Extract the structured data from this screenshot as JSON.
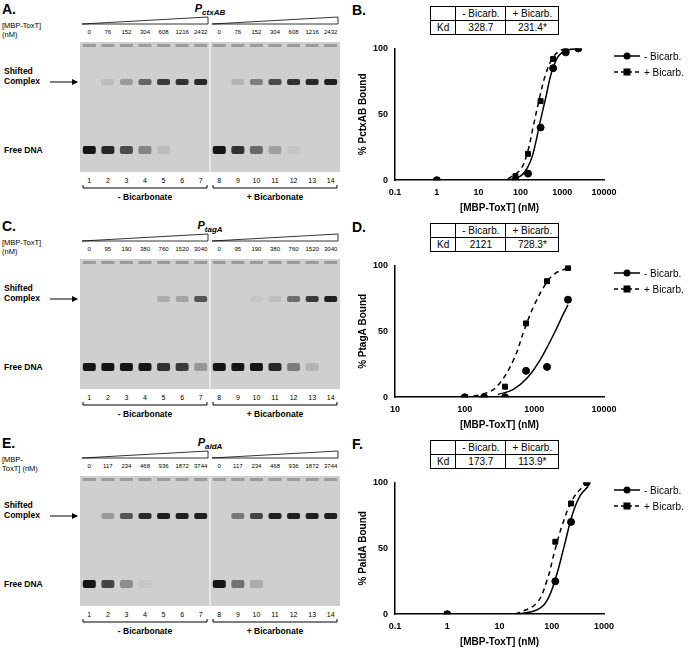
{
  "gels": [
    {
      "panel": "A.",
      "title_main": "P",
      "title_sub": "ctxAB",
      "conc_label": [
        "[MBP-ToxT]",
        "(nM)"
      ],
      "concentrations": [
        0,
        76,
        152,
        304,
        608,
        1216,
        2432
      ],
      "lanes": [
        1,
        2,
        3,
        4,
        5,
        6,
        7,
        8,
        9,
        10,
        11,
        12,
        13,
        14
      ],
      "shifted_label": "Shifted Complex",
      "free_label": "Free DNA",
      "conditions": [
        "- Bicarbonate",
        "+ Bicarbonate"
      ],
      "shifted_intensity": [
        0,
        0.1,
        0.3,
        0.6,
        0.85,
        0.9,
        0.95,
        0,
        0.15,
        0.45,
        0.75,
        0.9,
        0.95,
        1
      ],
      "free_intensity": [
        1,
        0.9,
        0.7,
        0.4,
        0.1,
        0,
        0,
        1,
        0.85,
        0.55,
        0.25,
        0.05,
        0,
        0
      ]
    },
    {
      "panel": "C.",
      "title_main": "P",
      "title_sub": "tagA",
      "conc_label": [
        "[MBP-ToxT]",
        "(nM)"
      ],
      "concentrations": [
        0,
        95,
        190,
        380,
        760,
        1520,
        3040
      ],
      "lanes": [
        1,
        2,
        3,
        4,
        5,
        6,
        7,
        8,
        9,
        10,
        11,
        12,
        13,
        14
      ],
      "shifted_label": "Shifted Complex",
      "free_label": "Free DNA",
      "conditions": [
        "- Bicarbonate",
        "+ Bicarbonate"
      ],
      "shifted_intensity": [
        0,
        0,
        0,
        0,
        0.2,
        0.25,
        0.7,
        0,
        0,
        0.05,
        0.1,
        0.55,
        0.85,
        1
      ],
      "free_intensity": [
        1,
        1,
        1,
        1,
        0.85,
        0.8,
        0.3,
        1,
        1,
        1,
        0.9,
        0.45,
        0.15,
        0
      ]
    },
    {
      "panel": "E.",
      "title_main": "P",
      "title_sub": "aldA",
      "conc_label": [
        "[MBP-",
        "ToxT] (nM)"
      ],
      "concentrations": [
        0,
        117,
        234,
        468,
        936,
        1872,
        3744
      ],
      "lanes": [
        1,
        2,
        3,
        4,
        5,
        6,
        7,
        8,
        9,
        10,
        11,
        12,
        13,
        14
      ],
      "shifted_label": "Shifted Complex",
      "free_label": "Free DNA",
      "conditions": [
        "- Bicarbonate",
        "+ Bicarbonate"
      ],
      "shifted_intensity": [
        0,
        0.3,
        0.7,
        0.95,
        1,
        1,
        1,
        0,
        0.5,
        0.8,
        1,
        1,
        1,
        1
      ],
      "free_intensity": [
        1,
        0.75,
        0.35,
        0.05,
        0,
        0,
        0,
        1,
        0.5,
        0.2,
        0,
        0,
        0,
        0
      ]
    }
  ],
  "chart_data": [
    {
      "type": "scatter",
      "panel": "B.",
      "x_label": "[MBP-ToxT] (nM)",
      "y_label": "% PctxAB Bound",
      "log": "x",
      "grid": false,
      "legend": "upper right",
      "xlim": [
        0.1,
        10000
      ],
      "xticks": [
        0.1,
        1,
        10,
        100,
        1000,
        10000
      ],
      "ylim": [
        0,
        100
      ],
      "yticks": [
        0,
        50,
        100
      ],
      "kd_table": {
        "header": [
          "- Bicarb.",
          "+ Bicarb."
        ],
        "row_label": "Kd",
        "values": [
          328.7,
          231.4
        ],
        "significant": [
          false,
          true
        ],
        "significance_mark": "*"
      },
      "series": [
        {
          "name": "- Bicarb.",
          "color": "#000000",
          "marker": "circle",
          "line_style": "solid",
          "x": [
            1,
            76,
            152,
            304,
            608,
            1216,
            2432
          ],
          "values": [
            0,
            0,
            5,
            40,
            85,
            97,
            100
          ],
          "fit_x": [
            50,
            100,
            150,
            200,
            300,
            400,
            600,
            1000,
            2432
          ],
          "fit_values": [
            0,
            3,
            10,
            20,
            45,
            62,
            85,
            97,
            100
          ]
        },
        {
          "name": "+ Bicarb.",
          "color": "#000000",
          "marker": "square",
          "line_style": "dashed",
          "x": [
            1,
            76,
            152,
            304,
            608,
            1216,
            2432
          ],
          "values": [
            0,
            3,
            20,
            60,
            92,
            98,
            100
          ],
          "fit_x": [
            50,
            100,
            150,
            200,
            300,
            400,
            600,
            1000,
            2432
          ],
          "fit_values": [
            1,
            8,
            22,
            40,
            65,
            80,
            93,
            99,
            100
          ]
        }
      ]
    },
    {
      "type": "scatter",
      "panel": "D.",
      "x_label": "[MBP-ToxT] (nM)",
      "y_label": "% PtagA Bound",
      "log": "x",
      "grid": false,
      "legend": "upper right",
      "xlim": [
        10,
        10000
      ],
      "xticks": [
        10,
        100,
        1000,
        10000
      ],
      "ylim": [
        0,
        100
      ],
      "yticks": [
        0,
        50,
        100
      ],
      "kd_table": {
        "header": [
          "- Bicarb.",
          "+ Bicarb."
        ],
        "row_label": "Kd",
        "values": [
          2121,
          728.3
        ],
        "significant": [
          false,
          true
        ],
        "significance_mark": "*"
      },
      "series": [
        {
          "name": "- Bicarb.",
          "color": "#000000",
          "marker": "circle",
          "line_style": "solid",
          "x": [
            100,
            190,
            380,
            760,
            1520,
            3040
          ],
          "values": [
            0,
            0,
            0,
            20,
            23,
            74
          ],
          "fit_x": [
            300,
            500,
            800,
            1200,
            1600,
            2121,
            2600,
            3040
          ],
          "fit_values": [
            2,
            6,
            15,
            28,
            40,
            53,
            63,
            70
          ]
        },
        {
          "name": "+ Bicarb.",
          "color": "#000000",
          "marker": "square",
          "line_style": "dashed",
          "x": [
            100,
            190,
            380,
            760,
            1520,
            3040
          ],
          "values": [
            0,
            0,
            8,
            56,
            88,
            98
          ],
          "fit_x": [
            100,
            200,
            300,
            500,
            728,
            1000,
            1500,
            2000,
            3040
          ],
          "fit_values": [
            0,
            3,
            9,
            28,
            52,
            70,
            87,
            94,
            98
          ]
        }
      ]
    },
    {
      "type": "scatter",
      "panel": "F.",
      "x_label": "[MBP-ToxT] (nM)",
      "y_label": "% PaldA Bound",
      "log": "x",
      "grid": false,
      "legend": "upper right",
      "xlim": [
        0.1,
        1000
      ],
      "xticks": [
        0.1,
        1,
        10,
        100,
        1000
      ],
      "ylim": [
        0,
        100
      ],
      "yticks": [
        0,
        50,
        100
      ],
      "kd_table": {
        "header": [
          "- Bicarb.",
          "+ Bicarb."
        ],
        "row_label": "Kd",
        "values": [
          173.7,
          113.9
        ],
        "significant": [
          false,
          true
        ],
        "significance_mark": "*"
      },
      "series": [
        {
          "name": "- Bicarb.",
          "color": "#000000",
          "marker": "circle",
          "line_style": "solid",
          "x": [
            1,
            117,
            234,
            468
          ],
          "values": [
            0,
            25,
            70,
            100
          ],
          "fit_x": [
            20,
            50,
            80,
            120,
            174,
            250,
            350,
            500
          ],
          "fit_values": [
            0,
            3,
            10,
            28,
            52,
            76,
            90,
            97
          ]
        },
        {
          "name": "+ Bicarb.",
          "color": "#000000",
          "marker": "square",
          "line_style": "dashed",
          "x": [
            1,
            117,
            234,
            468
          ],
          "values": [
            0,
            55,
            84,
            100
          ],
          "fit_x": [
            20,
            50,
            80,
            114,
            160,
            250,
            400,
            500
          ],
          "fit_values": [
            0,
            8,
            25,
            48,
            68,
            87,
            97,
            99
          ]
        }
      ]
    }
  ]
}
